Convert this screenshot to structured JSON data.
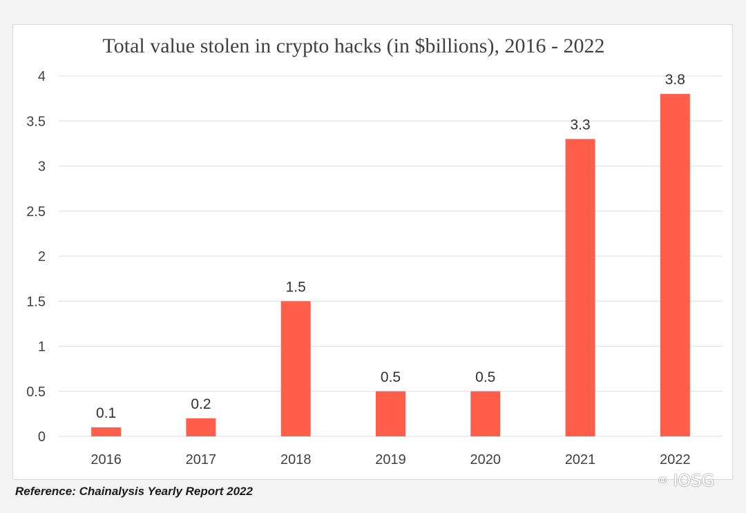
{
  "chart_data": {
    "type": "bar",
    "title": "Total value stolen in crypto hacks (in $billions), 2016 - 2022",
    "categories": [
      "2016",
      "2017",
      "2018",
      "2019",
      "2020",
      "2021",
      "2022"
    ],
    "values": [
      0.1,
      0.2,
      1.5,
      0.5,
      0.5,
      3.3,
      3.8
    ],
    "data_labels": [
      "0.1",
      "0.2",
      "1.5",
      "0.5",
      "0.5",
      "3.3",
      "3.8"
    ],
    "yticks": [
      "0",
      "0.5",
      "1",
      "1.5",
      "2",
      "2.5",
      "3",
      "3.5",
      "4"
    ],
    "ylim": [
      0,
      4
    ],
    "xlabel": "",
    "ylabel": "",
    "grid": true,
    "bar_color": "#ff5f4a"
  },
  "footer": {
    "reference": "Reference: Chainalysis Yearly Report 2022",
    "watermark_text": "IOSG",
    "watermark_icon": "wechat-icon"
  }
}
